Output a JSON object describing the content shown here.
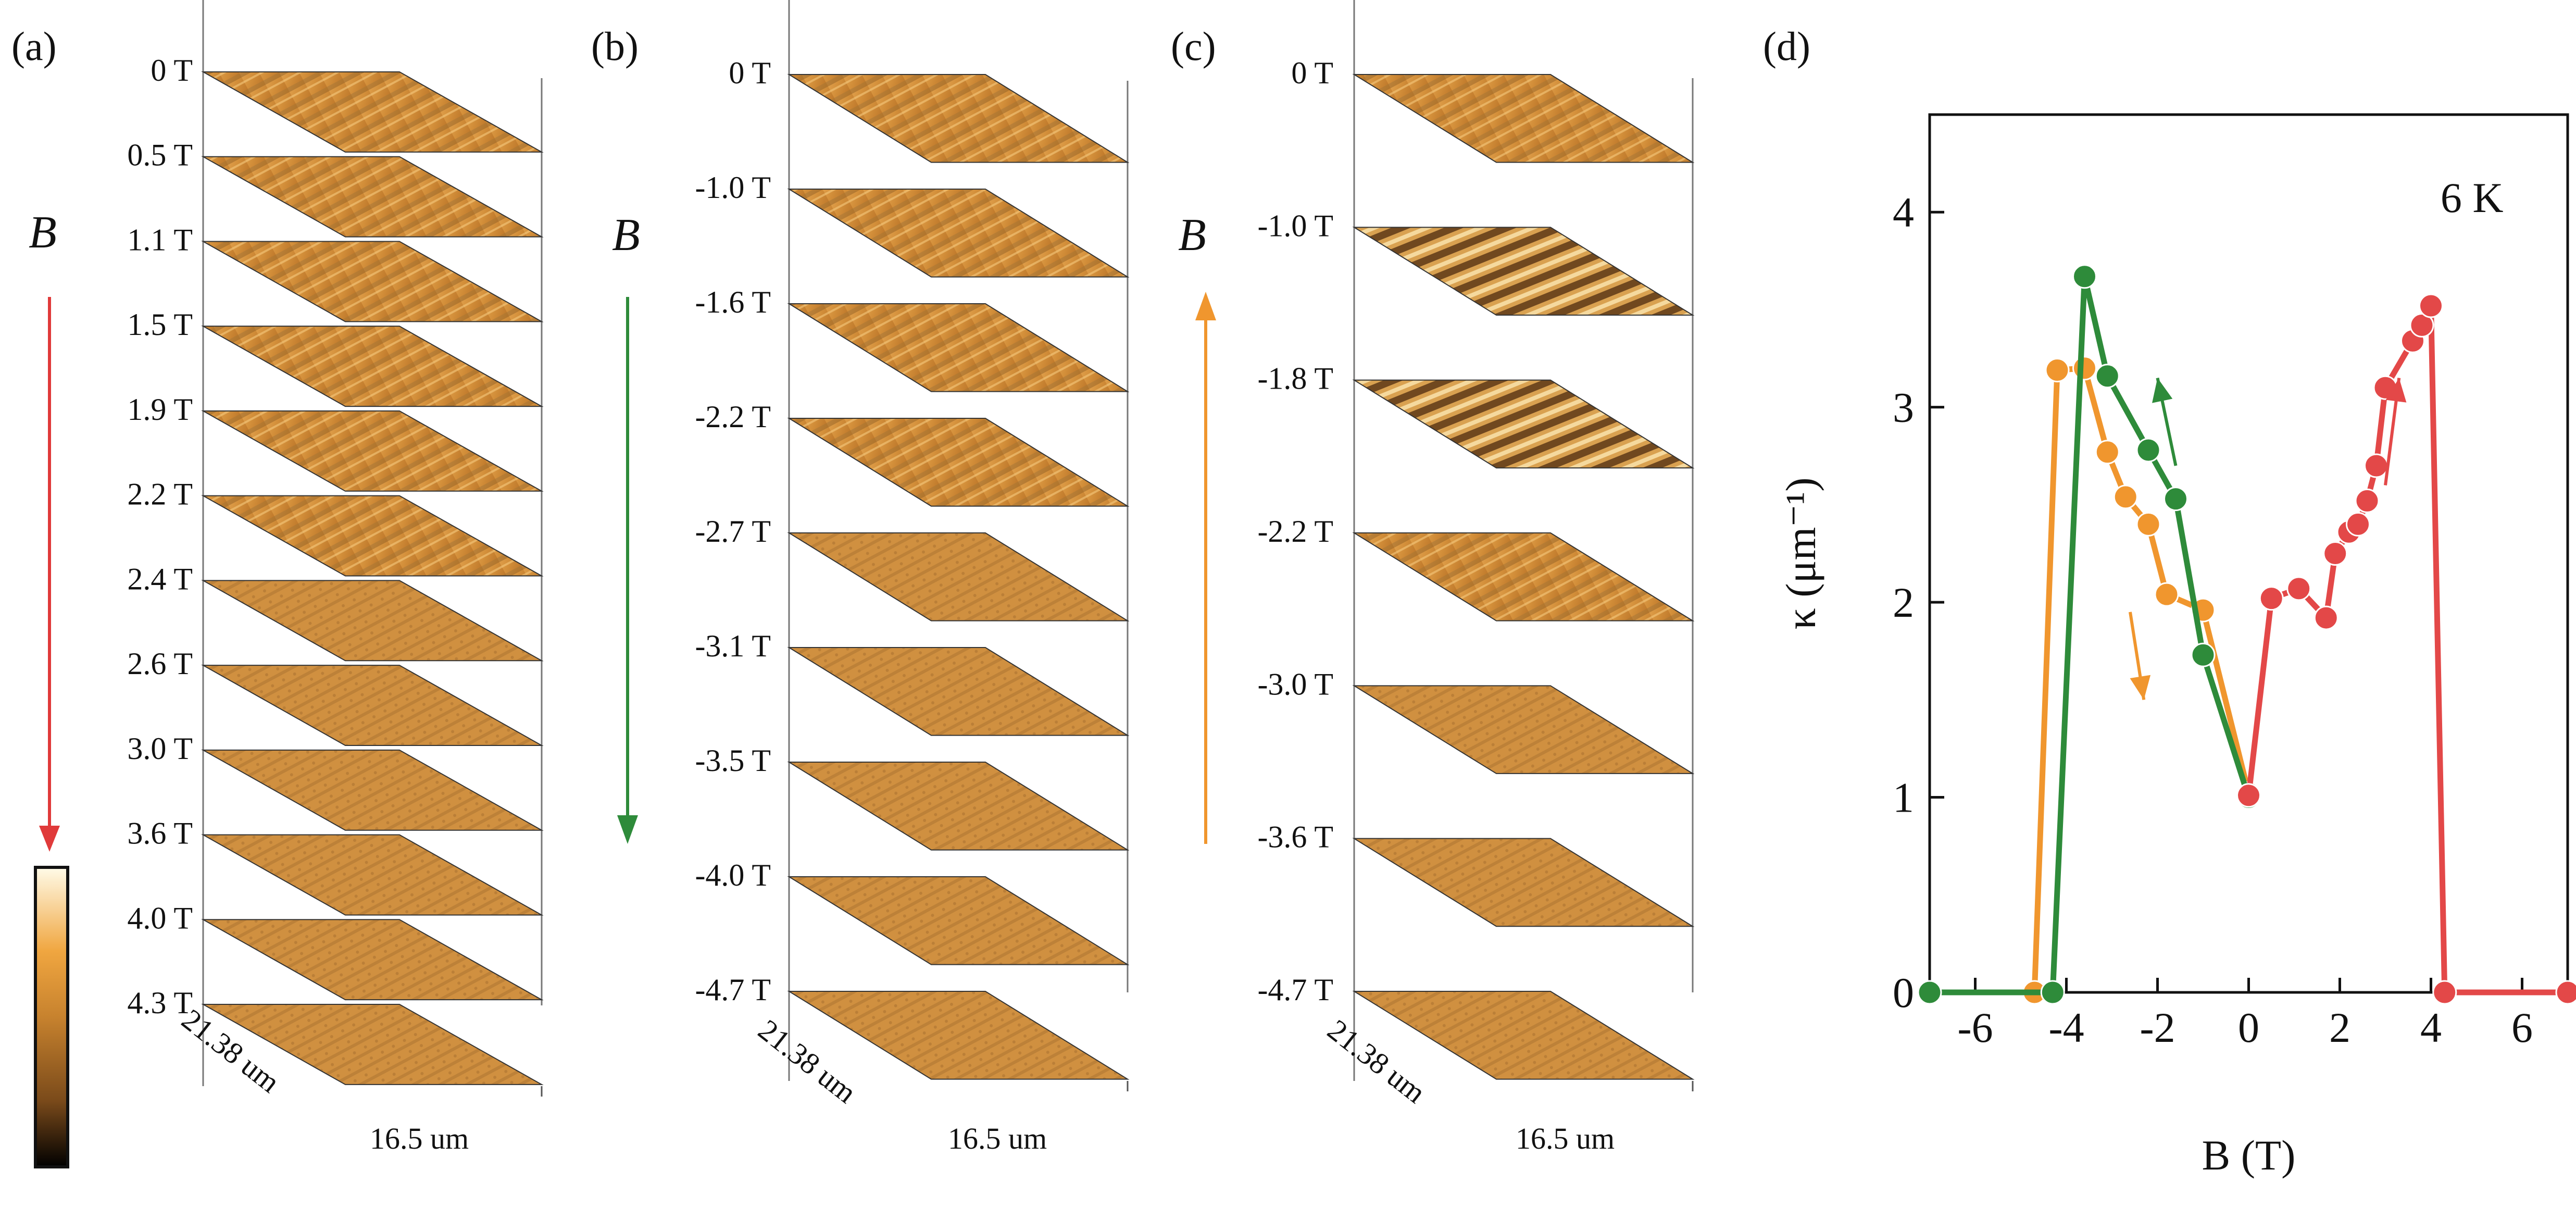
{
  "panels": {
    "a": {
      "label": "(a)",
      "fields": [
        "0 T",
        "0.5 T",
        "1.1 T",
        "1.5 T",
        "1.9 T",
        "2.2 T",
        "2.4 T",
        "2.6 T",
        "3.0 T",
        "3.6 T",
        "4.0 T",
        "4.3 T"
      ],
      "field_symbol": "B",
      "sweep_direction": "increasing",
      "arrow_color": "#e03a3a",
      "dim_y": "21.38 um",
      "dim_x": "16.5 um"
    },
    "b": {
      "label": "(b)",
      "fields": [
        "0 T",
        "-1.0 T",
        "-1.6 T",
        "-2.2 T",
        "-2.7 T",
        "-3.1 T",
        "-3.5 T",
        "-4.0 T",
        "-4.7 T"
      ],
      "field_symbol": "B",
      "sweep_direction": "decreasing",
      "arrow_color": "#2e8b3a",
      "dim_y": "21.38 um",
      "dim_x": "16.5 um"
    },
    "c": {
      "label": "(c)",
      "fields": [
        "0 T",
        "-1.0 T",
        "-1.8 T",
        "-2.2 T",
        "-3.0 T",
        "-3.6 T",
        "-4.7 T"
      ],
      "field_symbol": "B",
      "sweep_direction": "increasing",
      "arrow_color": "#f0962e",
      "dim_y": "21.38 um",
      "dim_x": "16.5 um"
    },
    "d": {
      "label": "(d)"
    }
  },
  "colorbar": {
    "colors": [
      "#fffbe8",
      "#f0a640",
      "#c7822e",
      "#7a4a1a",
      "#000000"
    ]
  },
  "chart_data": {
    "type": "line",
    "annotation": "6 K",
    "xlabel": "B (T)",
    "ylabel": "κ (μm⁻¹)",
    "xlim": [
      -7,
      7
    ],
    "ylim": [
      0,
      4.5
    ],
    "xticks": [
      -6,
      -4,
      -2,
      0,
      2,
      4,
      6
    ],
    "yticks": [
      0,
      1,
      2,
      3,
      4
    ],
    "series": [
      {
        "color": "#f0962e",
        "points": [
          [
            -4.7,
            0
          ],
          [
            -4.2,
            3.19
          ],
          [
            -3.6,
            3.2
          ],
          [
            -3.1,
            2.77
          ],
          [
            -2.7,
            2.54
          ],
          [
            -2.2,
            2.4
          ],
          [
            -1.8,
            2.04
          ],
          [
            -1.0,
            1.96
          ],
          [
            0,
            1.02
          ]
        ]
      },
      {
        "color": "#2e8b3a",
        "points": [
          [
            -7,
            0
          ],
          [
            -4.3,
            0
          ],
          [
            -3.6,
            3.67
          ],
          [
            -3.1,
            3.16
          ],
          [
            -2.2,
            2.78
          ],
          [
            -1.6,
            2.53
          ],
          [
            -1.0,
            1.73
          ],
          [
            0,
            1.0
          ]
        ]
      },
      {
        "color": "#e34848",
        "points": [
          [
            0,
            1.01
          ],
          [
            0.5,
            2.02
          ],
          [
            1.1,
            2.07
          ],
          [
            1.7,
            1.92
          ],
          [
            1.9,
            2.25
          ],
          [
            2.2,
            2.36
          ],
          [
            2.4,
            2.4
          ],
          [
            2.6,
            2.52
          ],
          [
            2.8,
            2.7
          ],
          [
            3.0,
            3.1
          ],
          [
            3.6,
            3.34
          ],
          [
            3.8,
            3.42
          ],
          [
            4.0,
            3.52
          ],
          [
            4.3,
            0
          ],
          [
            7,
            0
          ]
        ]
      }
    ],
    "direction_arrows": [
      {
        "color": "#2e8b3a",
        "direction": "up"
      },
      {
        "color": "#f0962e",
        "direction": "down"
      },
      {
        "color": "#e34848",
        "direction": "up"
      }
    ]
  }
}
